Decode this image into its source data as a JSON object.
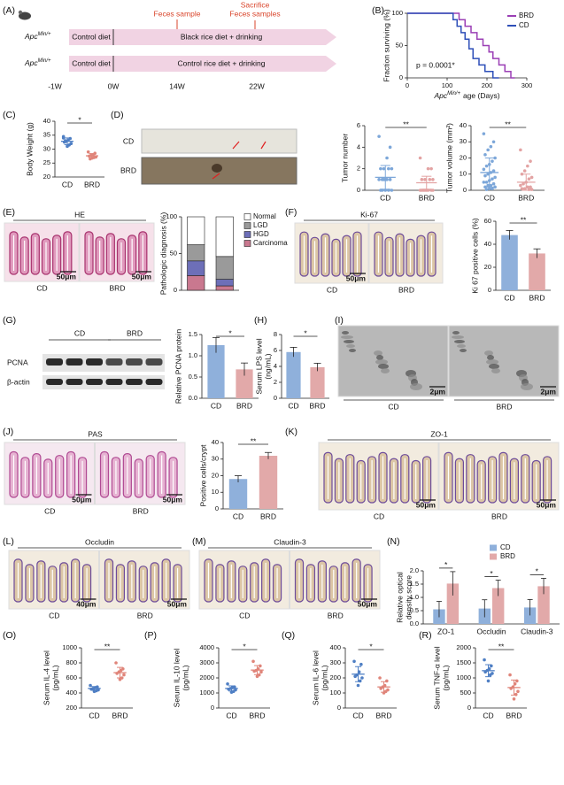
{
  "panel_labels": [
    "(A)",
    "(B)",
    "(C)",
    "(D)",
    "(E)",
    "(F)",
    "(G)",
    "(H)",
    "(I)",
    "(J)",
    "(K)",
    "(L)",
    "(M)",
    "(N)",
    "(O)",
    "(P)",
    "(Q)",
    "(R)"
  ],
  "timeline": {
    "rows": [
      {
        "genotype": {
          "gene": "Apc",
          "sup": "Min/+"
        },
        "diet1": "Control diet",
        "diet2": "Black rice diet + drinking"
      },
      {
        "genotype": {
          "gene": "Apc",
          "sup": "Min/+"
        },
        "diet1": "Control diet",
        "diet2": "Control rice diet + drinking"
      }
    ],
    "sample_1": "Feces sample",
    "sample_2": [
      "Sacrifice",
      "Feces samples"
    ],
    "time_points": [
      "-1W",
      "0W",
      "14W",
      "22W"
    ]
  },
  "specimens": {
    "groups": [
      "CD",
      "BRD"
    ]
  },
  "western_blot": {
    "groups": [
      "CD",
      "BRD"
    ],
    "proteins": [
      "PCNA",
      "β-actin"
    ]
  },
  "micrographs": {
    "E": {
      "title": "HE",
      "groups": [
        "CD",
        "BRD"
      ],
      "scale_bars": [
        "50μm",
        "50μm"
      ]
    },
    "F": {
      "title": "Ki-67",
      "groups": [
        "CD",
        "BRD"
      ],
      "scale_bars": [
        "50μm"
      ]
    },
    "I": {
      "groups": [
        "CD",
        "BRD"
      ],
      "scale_bars": [
        "2μm",
        "2μm"
      ]
    },
    "J": {
      "title": "PAS",
      "groups": [
        "CD",
        "BRD"
      ],
      "scale_bars": [
        "50μm",
        "50μm"
      ]
    },
    "K": {
      "title": "ZO-1",
      "groups": [
        "CD",
        "BRD"
      ],
      "scale_bars": [
        "50μm",
        "50μm"
      ]
    },
    "L": {
      "title": "Occludin",
      "groups": [
        "CD",
        "BRD"
      ],
      "scale_bars": [
        "40μm",
        "50μm"
      ]
    },
    "M": {
      "title": "Claudin-3",
      "groups": [
        "CD",
        "BRD"
      ],
      "scale_bars": [
        "50μm"
      ]
    }
  },
  "chart_data": [
    {
      "type": "line",
      "y_label": "Fraction surviving (%)",
      "x_label": {
        "gene": "Apc",
        "sup": "Min/+",
        "text": "age (Days)"
      },
      "annotation": "p = 0.0001*",
      "xlim": [
        0,
        300
      ],
      "xticks": [
        0,
        100,
        200,
        300
      ],
      "ylim": [
        0,
        100
      ],
      "yticks": [
        0,
        50,
        100
      ],
      "legend": "top-right",
      "series": [
        {
          "name": "BRD",
          "color": "#9b3fb5",
          "x": [
            0,
            130,
            130,
            145,
            145,
            160,
            160,
            175,
            175,
            190,
            190,
            205,
            205,
            215,
            215,
            230,
            230,
            245,
            245,
            260,
            260,
            270
          ],
          "values": [
            100,
            100,
            90,
            90,
            80,
            80,
            70,
            70,
            60,
            60,
            50,
            50,
            40,
            40,
            30,
            30,
            20,
            20,
            10,
            10,
            0,
            0
          ]
        },
        {
          "name": "CD",
          "color": "#2e4fb8",
          "x": [
            0,
            115,
            115,
            125,
            125,
            135,
            135,
            145,
            145,
            155,
            155,
            165,
            165,
            180,
            180,
            195,
            195,
            215,
            215,
            230
          ],
          "values": [
            100,
            100,
            90,
            90,
            80,
            80,
            70,
            70,
            60,
            60,
            45,
            45,
            30,
            30,
            20,
            20,
            10,
            10,
            0,
            0
          ]
        }
      ]
    },
    {
      "type": "dot",
      "y_label": "Body Weight (g)",
      "ylim": [
        20,
        40
      ],
      "yticks": [
        20,
        25,
        30,
        35,
        40
      ],
      "significance": "*",
      "groups": [
        {
          "name": "CD",
          "color": "#4f7fc4",
          "points": [
            34.5,
            33.8,
            33.2,
            32.8,
            32.5,
            32,
            31.5,
            31,
            33,
            34
          ],
          "mean": 32.8,
          "sd": 1.2
        },
        {
          "name": "BRD",
          "color": "#e0857a",
          "points": [
            29,
            28.5,
            28,
            27.8,
            27.5,
            27.2,
            27,
            26.8,
            26.5
          ],
          "mean": 27.6,
          "sd": 0.8
        }
      ]
    },
    {
      "type": "dot",
      "y_label": "Tumor number",
      "ylim": [
        0,
        6
      ],
      "yticks": [
        0,
        2,
        4,
        6
      ],
      "significance": "**",
      "groups": [
        {
          "name": "CD",
          "color": "#7da7d9",
          "points": [
            5,
            4,
            3,
            2,
            2,
            2,
            2,
            1,
            1,
            1,
            1,
            1,
            1,
            0,
            0,
            0,
            0,
            0
          ],
          "mean": 1.2,
          "sd": 1.1
        },
        {
          "name": "BRD",
          "color": "#e3a3a3",
          "points": [
            3,
            2,
            2,
            1,
            1,
            1,
            1,
            0,
            0,
            0,
            0,
            0,
            0,
            0,
            0
          ],
          "mean": 0.7,
          "sd": 0.6
        }
      ]
    },
    {
      "type": "dot",
      "y_label": "Tumor volume (mm²)",
      "ylim": [
        0,
        40
      ],
      "yticks": [
        0,
        10,
        20,
        30,
        40
      ],
      "significance": "**",
      "groups": [
        {
          "name": "CD",
          "color": "#7da7d9",
          "points": [
            35,
            30,
            27,
            25,
            22,
            20,
            18,
            16,
            15,
            13,
            12,
            11,
            10,
            9,
            8,
            7,
            6,
            5,
            5,
            4,
            3,
            3,
            2,
            2,
            1,
            1,
            0.5
          ],
          "mean": 11,
          "sd": 9
        },
        {
          "name": "BRD",
          "color": "#e3a3a3",
          "points": [
            25,
            18,
            15,
            12,
            10,
            8,
            7,
            5,
            4,
            3,
            2,
            2,
            1,
            1,
            0.5,
            0.5
          ],
          "mean": 5,
          "sd": 5
        }
      ]
    },
    {
      "type": "stacked_bar",
      "y_label": "Pathologic diagnosis (%)",
      "ylim": [
        0,
        100
      ],
      "yticks": [
        0,
        50,
        100
      ],
      "legend": "right",
      "series": [
        {
          "name": "Carcinoma",
          "color": "#c9788f",
          "values": [
            20,
            6
          ]
        },
        {
          "name": "HGD",
          "color": "#6d6fb8",
          "values": [
            20,
            9
          ]
        },
        {
          "name": "LGD",
          "color": "#9a9a9a",
          "values": [
            22,
            31
          ]
        },
        {
          "name": "Normal",
          "color": "#ffffff",
          "values": [
            38,
            54
          ]
        }
      ]
    },
    {
      "type": "bar",
      "y_label": "Ki 67 positive cells (%)",
      "ylim": [
        0,
        60
      ],
      "yticks": [
        0,
        20,
        40,
        60
      ],
      "significance": "**",
      "categories": [
        "CD",
        "BRD"
      ],
      "values": [
        48,
        32
      ],
      "errors": [
        4,
        4
      ],
      "colors": [
        "#8fb0db",
        "#e2a9a9"
      ]
    },
    {
      "type": "bar",
      "y_label": "Relative PCNA protein",
      "ylim": [
        0,
        1.5
      ],
      "yticks": [
        {
          "value": 0,
          "label": "0.0"
        },
        0.5,
        {
          "value": 1,
          "label": "1.0"
        },
        1.5
      ],
      "significance": "*",
      "categories": [
        "CD",
        "BRD"
      ],
      "values": [
        1.25,
        0.68
      ],
      "errors": [
        0.18,
        0.15
      ],
      "colors": [
        "#8fb0db",
        "#e2a9a9"
      ]
    },
    {
      "type": "bar",
      "y_label": [
        "Serum LPS level",
        "(ng/mL)"
      ],
      "ylim": [
        0,
        8
      ],
      "yticks": [
        0,
        2,
        4,
        6,
        8
      ],
      "significance": "*",
      "categories": [
        "CD",
        "BRD"
      ],
      "values": [
        5.8,
        3.9
      ],
      "errors": [
        0.6,
        0.5
      ],
      "colors": [
        "#8fb0db",
        "#e2a9a9"
      ]
    },
    {
      "type": "bar",
      "y_label": "Positive cells/crypt",
      "ylim": [
        0,
        40
      ],
      "yticks": [
        0,
        10,
        20,
        30,
        40
      ],
      "significance": "**",
      "categories": [
        "CD",
        "BRD"
      ],
      "values": [
        18,
        32
      ],
      "errors": [
        2,
        2
      ],
      "colors": [
        "#8fb0db",
        "#e2a9a9"
      ]
    },
    {
      "type": "grouped_bar",
      "y_label": [
        "Relative optical",
        "density score"
      ],
      "ylim": [
        0,
        2
      ],
      "yticks": [
        {
          "value": 0,
          "label": "0.0"
        },
        0.5,
        {
          "value": 1,
          "label": "1.0"
        },
        1.5,
        {
          "value": 2,
          "label": "2.0"
        }
      ],
      "legend": "top",
      "significance": [
        "*",
        "*",
        "*"
      ],
      "categories": [
        "ZO-1",
        "Occludin",
        "Claudin-3"
      ],
      "series": [
        {
          "name": "CD",
          "color": "#8fb0db",
          "values": [
            0.55,
            0.58,
            0.62
          ],
          "errors": [
            0.3,
            0.33,
            0.3
          ]
        },
        {
          "name": "BRD",
          "color": "#e2a9a9",
          "values": [
            1.52,
            1.35,
            1.42
          ],
          "errors": [
            0.45,
            0.3,
            0.3
          ]
        }
      ]
    },
    {
      "type": "dot",
      "y_label": [
        "Serum IL-4 level",
        "(pg/mL)"
      ],
      "ylim": [
        200,
        1000
      ],
      "yticks": [
        200,
        400,
        600,
        800,
        1000
      ],
      "significance": "**",
      "groups": [
        {
          "name": "CD",
          "color": "#4f7fc4",
          "points": [
            500,
            480,
            470,
            460,
            450,
            440,
            430,
            420
          ],
          "mean": 460,
          "sd": 25
        },
        {
          "name": "BRD",
          "color": "#e0857a",
          "points": [
            800,
            720,
            700,
            680,
            660,
            640,
            600,
            580
          ],
          "mean": 670,
          "sd": 70
        }
      ]
    },
    {
      "type": "dot",
      "y_label": [
        "Serum IL-10 level",
        "(pg/mL)"
      ],
      "ylim": [
        0,
        4000
      ],
      "yticks": [
        0,
        1000,
        2000,
        3000,
        4000
      ],
      "significance": "*",
      "groups": [
        {
          "name": "CD",
          "color": "#4f7fc4",
          "points": [
            1600,
            1400,
            1350,
            1300,
            1250,
            1200,
            1100,
            1050
          ],
          "mean": 1300,
          "sd": 170
        },
        {
          "name": "BRD",
          "color": "#e0857a",
          "points": [
            3100,
            2800,
            2600,
            2500,
            2450,
            2400,
            2200,
            2100
          ],
          "mean": 2520,
          "sd": 300
        }
      ]
    },
    {
      "type": "dot",
      "y_label": [
        "Serum IL-6 level",
        "(pg/mL)"
      ],
      "ylim": [
        0,
        400
      ],
      "yticks": [
        0,
        100,
        200,
        300,
        400
      ],
      "significance": "*",
      "groups": [
        {
          "name": "CD",
          "color": "#4f7fc4",
          "points": [
            310,
            290,
            240,
            220,
            210,
            200,
            180,
            150
          ],
          "mean": 225,
          "sd": 50
        },
        {
          "name": "BRD",
          "color": "#e0857a",
          "points": [
            200,
            180,
            150,
            140,
            130,
            120,
            110,
            100
          ],
          "mean": 140,
          "sd": 35
        }
      ]
    },
    {
      "type": "dot",
      "y_label": [
        "Serum TNF-α level",
        "(pg/mL)"
      ],
      "ylim": [
        0,
        2000
      ],
      "yticks": [
        0,
        500,
        1000,
        1500,
        2000
      ],
      "significance": "**",
      "groups": [
        {
          "name": "CD",
          "color": "#4f7fc4",
          "points": [
            1600,
            1400,
            1300,
            1250,
            1200,
            1150,
            1100,
            900
          ],
          "mean": 1240,
          "sd": 200
        },
        {
          "name": "BRD",
          "color": "#e0857a",
          "points": [
            1100,
            900,
            800,
            700,
            650,
            550,
            450,
            300
          ],
          "mean": 680,
          "sd": 250
        }
      ]
    }
  ]
}
